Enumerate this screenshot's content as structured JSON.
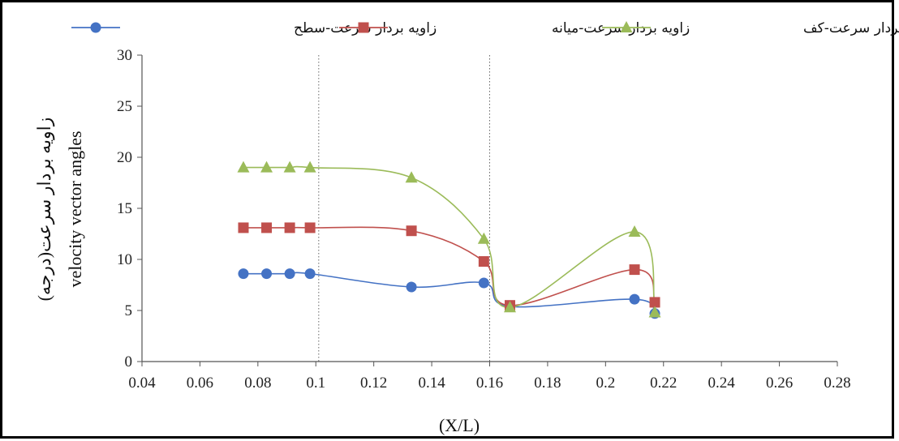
{
  "chart_data": {
    "type": "line",
    "xlabel": "(X/L)",
    "ylabel_line1": "زاویه بردار سرعت(درجه)",
    "ylabel_line2": "velocity vector  angles",
    "xlim": [
      0.04,
      0.28
    ],
    "ylim": [
      0,
      30
    ],
    "x_ticks": [
      0.04,
      0.06,
      0.08,
      0.1,
      0.12,
      0.14,
      0.16,
      0.18,
      0.2,
      0.22,
      0.24,
      0.26,
      0.28
    ],
    "x_tick_labels": [
      "0.04",
      "0.06",
      "0.08",
      "0.1",
      "0.12",
      "0.14",
      "0.16",
      "0.18",
      "0.2",
      "0.22",
      "0.24",
      "0.26",
      "0.28"
    ],
    "y_ticks": [
      0,
      5,
      10,
      15,
      20,
      25,
      30
    ],
    "y_tick_labels": [
      "0",
      "5",
      "10",
      "15",
      "20",
      "25",
      "30"
    ],
    "reference_lines_x": [
      0.101,
      0.16
    ],
    "grid": false,
    "legend_position": "top",
    "series": [
      {
        "name": "زاویه بردار سرعت-سطح",
        "color": "#4472C4",
        "marker": "circle",
        "x": [
          0.075,
          0.083,
          0.091,
          0.098,
          0.133,
          0.158,
          0.167,
          0.21,
          0.217
        ],
        "y": [
          8.6,
          8.6,
          8.6,
          8.6,
          7.3,
          7.7,
          5.4,
          6.1,
          4.7
        ]
      },
      {
        "name": "زاویه بردار سرعت-میانه",
        "color": "#C0504D",
        "marker": "square",
        "x": [
          0.075,
          0.083,
          0.091,
          0.098,
          0.133,
          0.158,
          0.167,
          0.21,
          0.217
        ],
        "y": [
          13.1,
          13.1,
          13.1,
          13.1,
          12.8,
          9.8,
          5.5,
          9.0,
          5.8
        ]
      },
      {
        "name": "زاویه بردار سرعت-کف",
        "color": "#9BBB59",
        "marker": "triangle",
        "x": [
          0.075,
          0.083,
          0.091,
          0.098,
          0.133,
          0.158,
          0.167,
          0.21,
          0.217
        ],
        "y": [
          19.0,
          19.0,
          19.0,
          19.0,
          18.0,
          12.0,
          5.3,
          12.7,
          4.8
        ]
      }
    ]
  }
}
